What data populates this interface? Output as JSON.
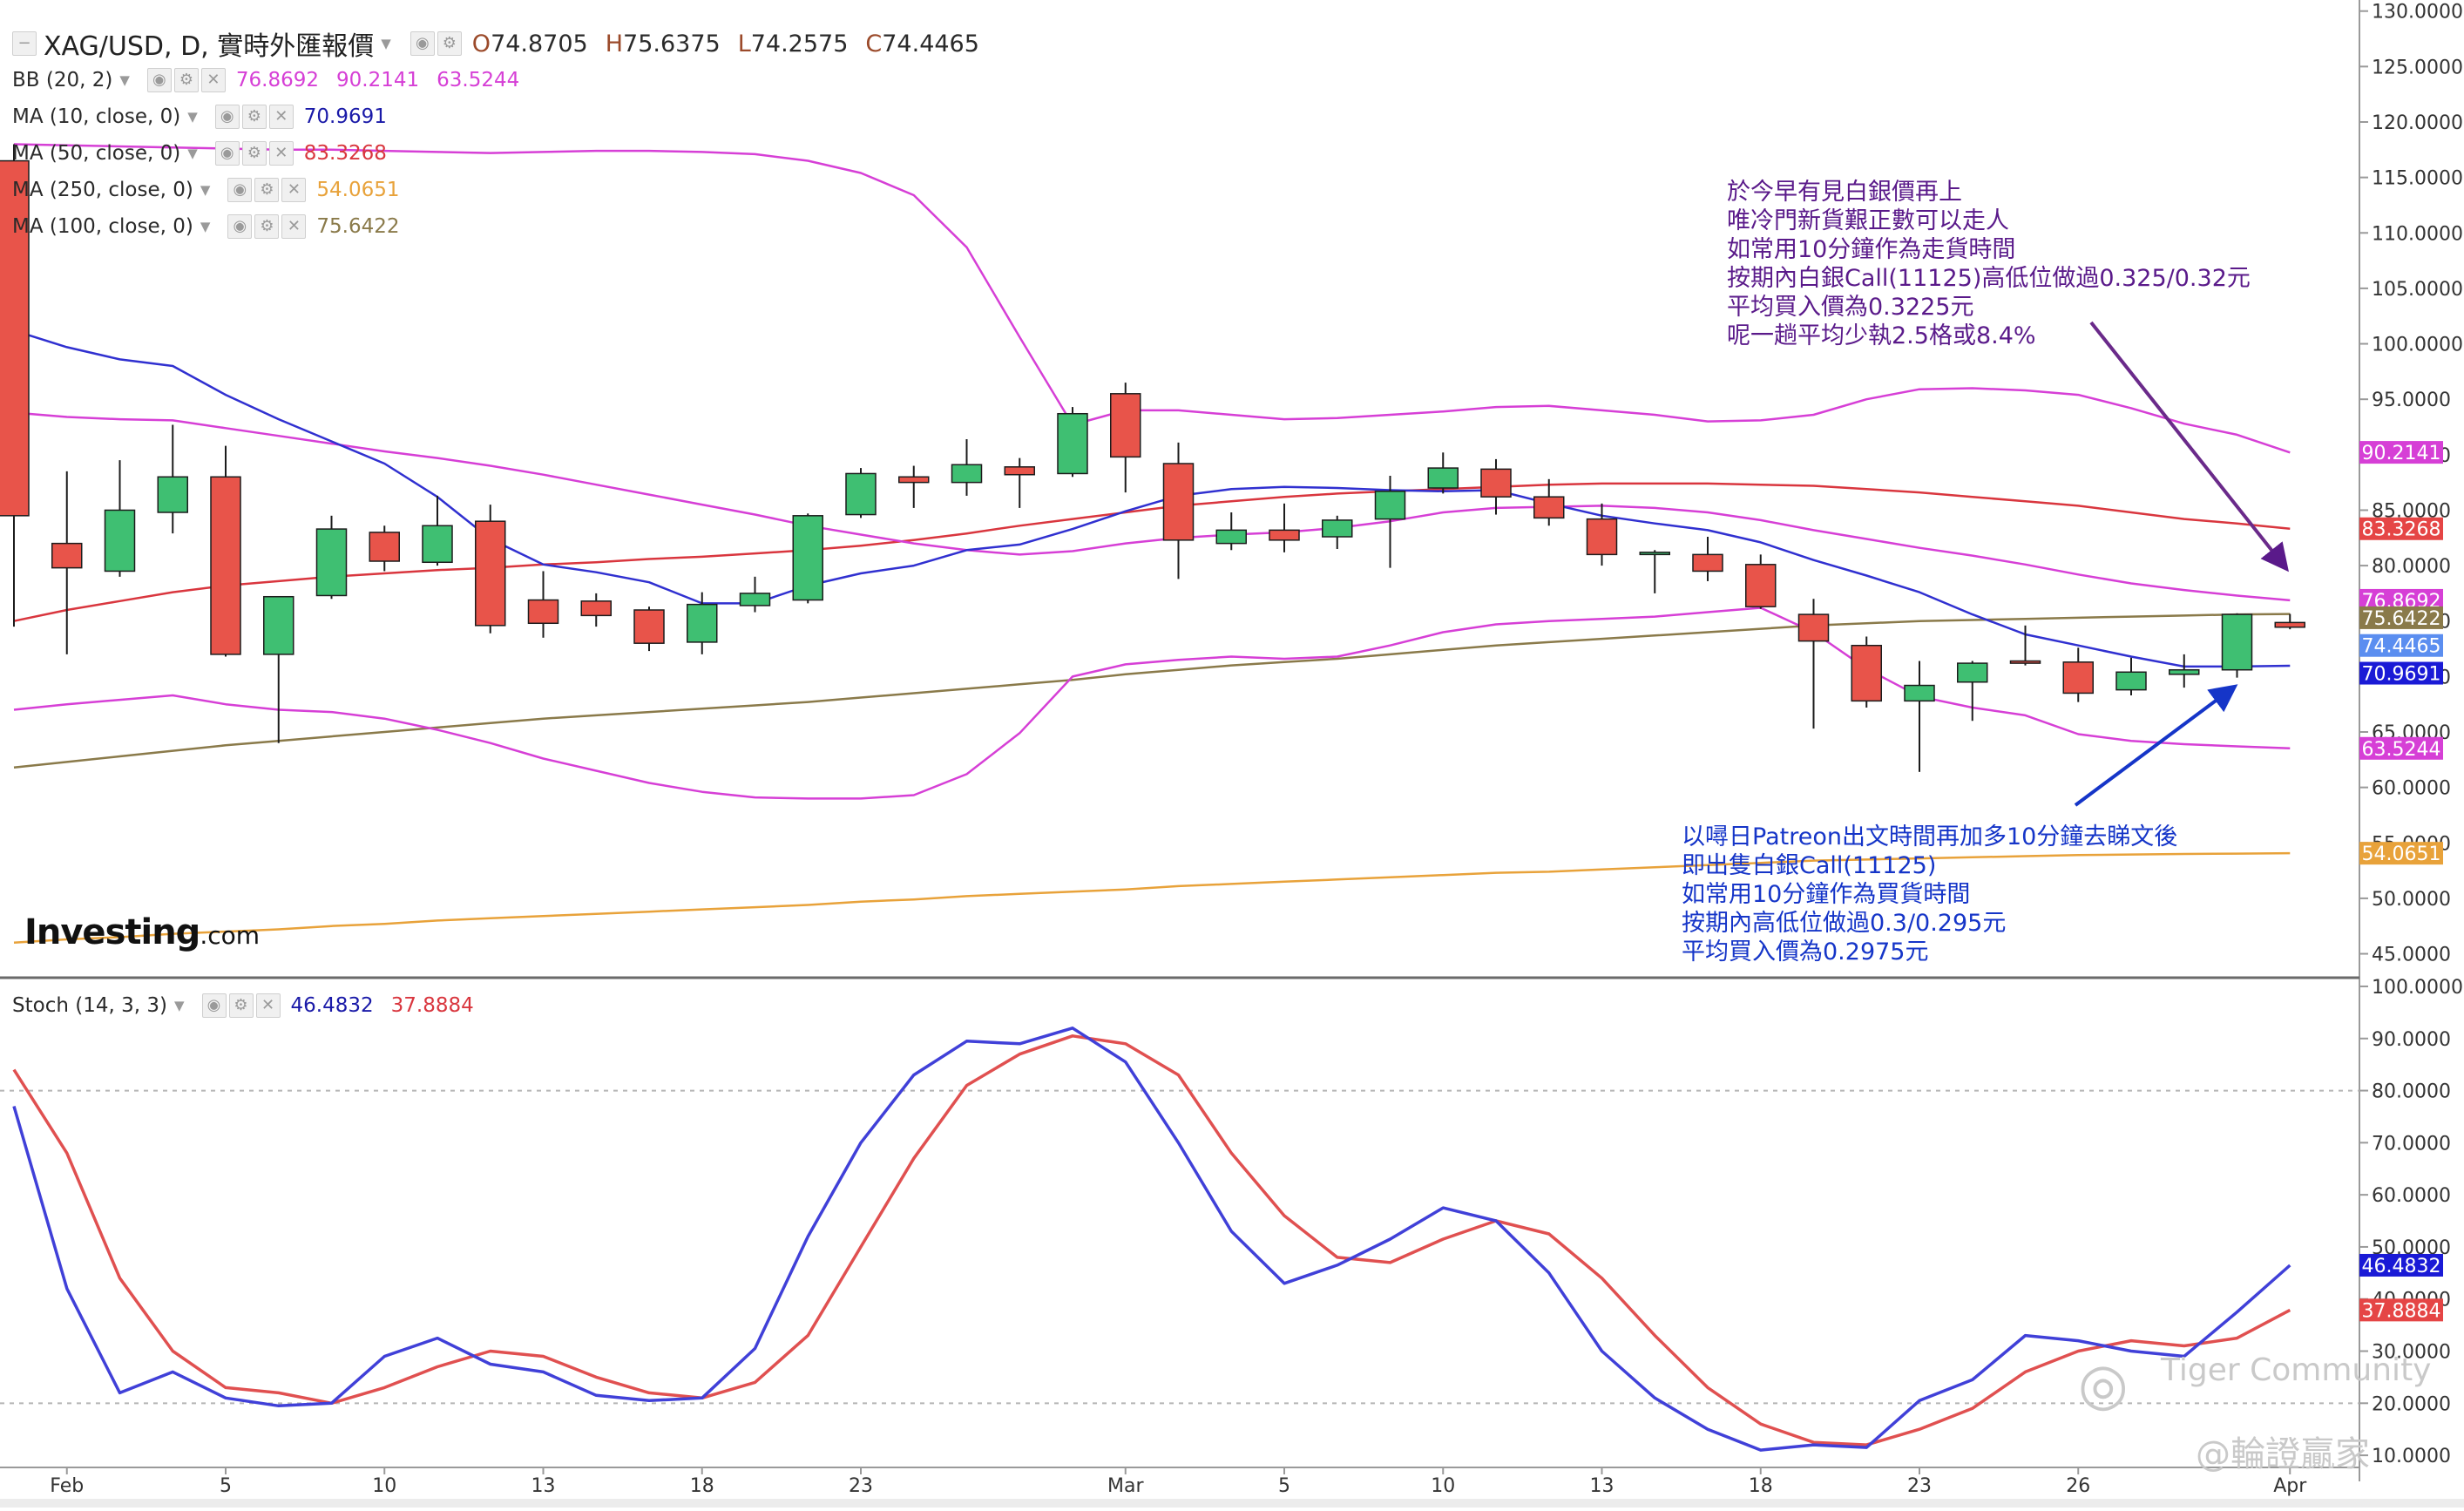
{
  "header": {
    "title": "XAG/USD, D, 實時外匯報價",
    "ohlc": [
      {
        "k": "O",
        "v": "74.8705"
      },
      {
        "k": "H",
        "v": "75.6375"
      },
      {
        "k": "L",
        "v": "74.2575"
      },
      {
        "k": "C",
        "v": "74.4465"
      }
    ]
  },
  "indicators": [
    {
      "name": "BB (20, 2)",
      "values": [
        {
          "v": "76.8692",
          "color": "#d63fd6"
        },
        {
          "v": "90.2141",
          "color": "#d63fd6"
        },
        {
          "v": "63.5244",
          "color": "#d63fd6"
        }
      ]
    },
    {
      "name": "MA (10, close, 0)",
      "values": [
        {
          "v": "70.9691",
          "color": "#1a1aa8"
        }
      ]
    },
    {
      "name": "MA (50, close, 0)",
      "values": [
        {
          "v": "83.3268",
          "color": "#d9363e"
        }
      ]
    },
    {
      "name": "MA (250, close, 0)",
      "values": [
        {
          "v": "54.0651",
          "color": "#e8a23a"
        }
      ]
    },
    {
      "name": "MA (100, close, 0)",
      "values": [
        {
          "v": "75.6422",
          "color": "#8a7a4a"
        }
      ]
    }
  ],
  "stoch_legend": {
    "name": "Stoch (14, 3, 3)",
    "k": "46.4832",
    "d": "37.8884"
  },
  "annotations": {
    "top": [
      "於今早有見白銀價再上",
      "唯冷門新貨艱正數可以走人",
      "如常用10分鐘作為走貨時間",
      "按期內白銀Call(11125)高低位做過0.325/0.32元",
      "平均買入價為0.3225元",
      "呢一趟平均少執2.5格或8.4%"
    ],
    "bottom": [
      "以噚日Patreon出文時間再加多10分鐘去睇文後",
      "即出隻白銀Call(11125)",
      "如常用10分鐘作為買貨時間",
      "按期內高低位做過0.3/0.295元",
      "平均買入價為0.2975元"
    ],
    "top_color": "#5a1a8a",
    "bottom_color": "#1535c8"
  },
  "logo": {
    "main": "Investing",
    "suffix": ".com"
  },
  "watermarks": {
    "community": "Tiger Community",
    "handle": "@輪證贏家"
  },
  "chart_data": [
    {
      "type": "candlestick",
      "title": "",
      "xlabel": "",
      "ylabel": "",
      "ylim": [
        43,
        131
      ],
      "y_ticks": [
        "130.0000",
        "125.0000",
        "120.0000",
        "115.0000",
        "110.0000",
        "105.0000",
        "100.0000",
        "95.0000",
        "90.0000",
        "85.0000",
        "80.0000",
        "75.0000",
        "70.0000",
        "65.0000",
        "60.0000",
        "55.0000",
        "50.0000",
        "45.0000"
      ],
      "x_ticks": [
        {
          "label": "Feb",
          "i": 1
        },
        {
          "label": "5",
          "i": 4
        },
        {
          "label": "10",
          "i": 7
        },
        {
          "label": "13",
          "i": 10
        },
        {
          "label": "18",
          "i": 13
        },
        {
          "label": "23",
          "i": 16
        },
        {
          "label": "Mar",
          "i": 21
        },
        {
          "label": "5",
          "i": 24
        },
        {
          "label": "10",
          "i": 27
        },
        {
          "label": "13",
          "i": 30
        },
        {
          "label": "18",
          "i": 33
        },
        {
          "label": "23",
          "i": 36
        },
        {
          "label": "26",
          "i": 39
        },
        {
          "label": "Apr",
          "i": 43
        }
      ],
      "candles": [
        {
          "o": 116.5,
          "h": 118.0,
          "l": 74.5,
          "c": 84.5
        },
        {
          "o": 82.0,
          "h": 88.5,
          "l": 72.0,
          "c": 79.8
        },
        {
          "o": 79.5,
          "h": 89.5,
          "l": 79.0,
          "c": 85.0
        },
        {
          "o": 84.8,
          "h": 92.7,
          "l": 82.9,
          "c": 88.0
        },
        {
          "o": 88.0,
          "h": 90.8,
          "l": 71.8,
          "c": 72.0
        },
        {
          "o": 72.0,
          "h": 77.0,
          "l": 64.0,
          "c": 77.2
        },
        {
          "o": 77.3,
          "h": 84.5,
          "l": 77.0,
          "c": 83.3
        },
        {
          "o": 83.0,
          "h": 83.6,
          "l": 79.5,
          "c": 80.4
        },
        {
          "o": 80.3,
          "h": 86.3,
          "l": 80.0,
          "c": 83.6
        },
        {
          "o": 84.0,
          "h": 85.5,
          "l": 73.9,
          "c": 74.6
        },
        {
          "o": 76.9,
          "h": 79.5,
          "l": 73.5,
          "c": 74.8
        },
        {
          "o": 76.8,
          "h": 77.5,
          "l": 74.5,
          "c": 75.5
        },
        {
          "o": 76.0,
          "h": 76.3,
          "l": 72.3,
          "c": 73.0
        },
        {
          "o": 73.1,
          "h": 77.6,
          "l": 72.0,
          "c": 76.5
        },
        {
          "o": 76.4,
          "h": 79.0,
          "l": 75.8,
          "c": 77.5
        },
        {
          "o": 76.9,
          "h": 84.7,
          "l": 76.6,
          "c": 84.5
        },
        {
          "o": 84.6,
          "h": 88.8,
          "l": 84.3,
          "c": 88.3
        },
        {
          "o": 88.0,
          "h": 89.0,
          "l": 85.2,
          "c": 87.5
        },
        {
          "o": 87.5,
          "h": 91.4,
          "l": 86.3,
          "c": 89.1
        },
        {
          "o": 88.9,
          "h": 89.7,
          "l": 85.2,
          "c": 88.2
        },
        {
          "o": 88.3,
          "h": 94.3,
          "l": 88.0,
          "c": 93.7
        },
        {
          "o": 95.5,
          "h": 96.5,
          "l": 86.6,
          "c": 89.8
        },
        {
          "o": 89.2,
          "h": 91.1,
          "l": 78.8,
          "c": 82.3
        },
        {
          "o": 82.0,
          "h": 84.8,
          "l": 81.4,
          "c": 83.2
        },
        {
          "o": 83.2,
          "h": 85.6,
          "l": 81.2,
          "c": 82.3
        },
        {
          "o": 82.6,
          "h": 84.5,
          "l": 81.5,
          "c": 84.1
        },
        {
          "o": 84.2,
          "h": 88.1,
          "l": 79.8,
          "c": 86.7
        },
        {
          "o": 87.0,
          "h": 90.2,
          "l": 86.5,
          "c": 88.8
        },
        {
          "o": 88.7,
          "h": 89.6,
          "l": 84.6,
          "c": 86.2
        },
        {
          "o": 86.2,
          "h": 87.8,
          "l": 83.6,
          "c": 84.3
        },
        {
          "o": 84.2,
          "h": 85.6,
          "l": 80.0,
          "c": 81.0
        },
        {
          "o": 81.0,
          "h": 81.4,
          "l": 77.5,
          "c": 81.2
        },
        {
          "o": 81.0,
          "h": 82.6,
          "l": 78.6,
          "c": 79.5
        },
        {
          "o": 80.1,
          "h": 81.0,
          "l": 76.1,
          "c": 76.3
        },
        {
          "o": 75.6,
          "h": 77.0,
          "l": 65.3,
          "c": 73.2
        },
        {
          "o": 72.8,
          "h": 73.6,
          "l": 67.2,
          "c": 67.8
        },
        {
          "o": 67.8,
          "h": 71.4,
          "l": 61.4,
          "c": 69.2
        },
        {
          "o": 69.5,
          "h": 71.4,
          "l": 66.0,
          "c": 71.2
        },
        {
          "o": 71.4,
          "h": 74.6,
          "l": 71.0,
          "c": 71.2
        },
        {
          "o": 71.3,
          "h": 72.6,
          "l": 67.7,
          "c": 68.5
        },
        {
          "o": 68.8,
          "h": 71.7,
          "l": 68.3,
          "c": 70.4
        },
        {
          "o": 70.2,
          "h": 72.0,
          "l": 69.0,
          "c": 70.6
        },
        {
          "o": 70.6,
          "h": 75.7,
          "l": 69.9,
          "c": 75.6
        },
        {
          "o": 74.87,
          "h": 75.64,
          "l": 74.26,
          "c": 74.45
        }
      ],
      "series": [
        {
          "id": "bb_upper",
          "name": "",
          "color": "#d63fd6",
          "values": [
            118,
            117.9,
            117.8,
            117.7,
            117.6,
            117.5,
            117.5,
            117.4,
            117.3,
            117.2,
            117.3,
            117.4,
            117.4,
            117.3,
            117.1,
            116.5,
            115.4,
            113.4,
            108.7,
            100.6,
            92.7,
            94.0,
            94.0,
            93.6,
            93.2,
            93.3,
            93.6,
            93.9,
            94.3,
            94.4,
            94.0,
            93.6,
            93.0,
            93.1,
            93.6,
            95.0,
            95.9,
            96.0,
            95.8,
            95.4,
            94.2,
            92.8,
            91.8,
            90.2
          ]
        },
        {
          "id": "bb_mid",
          "name": "",
          "color": "#d63fd6",
          "values": [
            93.8,
            93.4,
            93.2,
            93.1,
            92.4,
            91.7,
            91.0,
            90.3,
            89.7,
            89.0,
            88.2,
            87.3,
            86.4,
            85.5,
            84.6,
            83.6,
            82.8,
            82.0,
            81.4,
            81.0,
            81.3,
            82.0,
            82.5,
            82.8,
            83.0,
            83.4,
            84.0,
            84.8,
            85.2,
            85.3,
            85.4,
            85.2,
            84.8,
            84.1,
            83.2,
            82.4,
            81.6,
            80.9,
            80.1,
            79.2,
            78.4,
            77.8,
            77.3,
            76.87
          ]
        },
        {
          "id": "bb_lower",
          "name": "",
          "color": "#d63fd6",
          "values": [
            67.0,
            67.5,
            67.9,
            68.3,
            67.5,
            67.0,
            66.8,
            66.2,
            65.2,
            64.0,
            62.6,
            61.5,
            60.4,
            59.6,
            59.1,
            59.0,
            59.0,
            59.3,
            61.2,
            64.9,
            70.0,
            71.1,
            71.5,
            71.8,
            71.6,
            71.8,
            72.8,
            74.0,
            74.7,
            75.0,
            75.2,
            75.4,
            75.8,
            76.2,
            74.0,
            70.7,
            68.2,
            67.2,
            66.5,
            64.8,
            64.2,
            63.9,
            63.7,
            63.52
          ]
        },
        {
          "id": "ma10",
          "name": "",
          "color": "#3030d0",
          "values": [
            101.2,
            99.7,
            98.6,
            98.0,
            95.4,
            93.2,
            91.2,
            89.2,
            86.2,
            82.4,
            80.1,
            79.4,
            78.5,
            76.6,
            76.6,
            78.2,
            79.3,
            80.0,
            81.4,
            81.9,
            83.3,
            84.9,
            86.3,
            86.9,
            87.1,
            87.0,
            86.8,
            86.7,
            86.8,
            85.6,
            84.5,
            83.8,
            83.2,
            82.1,
            80.5,
            79.1,
            77.6,
            75.6,
            73.8,
            72.8,
            71.8,
            70.9,
            70.9,
            70.97
          ]
        },
        {
          "id": "ma50",
          "name": "",
          "color": "#d9363e",
          "values": [
            75.0,
            76.0,
            76.8,
            77.6,
            78.2,
            78.6,
            79.0,
            79.3,
            79.6,
            79.8,
            80.1,
            80.3,
            80.6,
            80.8,
            81.1,
            81.4,
            81.8,
            82.3,
            82.9,
            83.6,
            84.2,
            84.8,
            85.4,
            85.8,
            86.2,
            86.5,
            86.7,
            86.9,
            87.1,
            87.3,
            87.4,
            87.4,
            87.4,
            87.3,
            87.2,
            86.9,
            86.6,
            86.2,
            85.8,
            85.4,
            84.8,
            84.2,
            83.8,
            83.33
          ]
        },
        {
          "id": "ma250",
          "name": "",
          "color": "#e8a23a",
          "values": [
            46.0,
            46.3,
            46.5,
            46.8,
            47.0,
            47.2,
            47.5,
            47.7,
            48.0,
            48.2,
            48.4,
            48.6,
            48.8,
            49.0,
            49.2,
            49.4,
            49.7,
            49.9,
            50.2,
            50.4,
            50.6,
            50.8,
            51.1,
            51.3,
            51.5,
            51.7,
            51.9,
            52.1,
            52.3,
            52.4,
            52.6,
            52.8,
            53.0,
            53.2,
            53.4,
            53.5,
            53.6,
            53.7,
            53.8,
            53.9,
            53.95,
            54.0,
            54.03,
            54.07
          ]
        },
        {
          "id": "ma100",
          "name": "",
          "color": "#8a7a4a",
          "values": [
            61.8,
            62.3,
            62.8,
            63.3,
            63.8,
            64.2,
            64.6,
            65.0,
            65.4,
            65.8,
            66.2,
            66.5,
            66.8,
            67.1,
            67.4,
            67.7,
            68.1,
            68.5,
            68.9,
            69.3,
            69.7,
            70.2,
            70.6,
            71.0,
            71.3,
            71.6,
            72.0,
            72.4,
            72.8,
            73.1,
            73.4,
            73.7,
            74.0,
            74.3,
            74.6,
            74.8,
            75.0,
            75.1,
            75.2,
            75.3,
            75.4,
            75.5,
            75.6,
            75.64
          ]
        }
      ],
      "price_labels": [
        {
          "v": "90.2141",
          "y": 90.2141,
          "bg": "#d63fd6"
        },
        {
          "v": "83.3268",
          "y": 83.3268,
          "bg": "#e54545"
        },
        {
          "v": "76.8692",
          "y": 76.8692,
          "bg": "#d63fd6"
        },
        {
          "v": "75.6422",
          "y": 75.3,
          "bg": "#8a7a4a"
        },
        {
          "v": "74.4465",
          "y": 72.8,
          "bg": "#5b8ef0"
        },
        {
          "v": "70.9691",
          "y": 70.3,
          "bg": "#1a1ad6"
        },
        {
          "v": "63.5244",
          "y": 63.5244,
          "bg": "#d63fd6"
        },
        {
          "v": "54.0651",
          "y": 54.0651,
          "bg": "#e8a23a"
        }
      ]
    },
    {
      "type": "line",
      "title": "",
      "xlabel": "",
      "ylabel": "",
      "ylim": [
        5,
        101
      ],
      "y_ticks": [
        "100.0000",
        "90.0000",
        "80.0000",
        "70.0000",
        "60.0000",
        "50.0000",
        "40.0000",
        "30.0000",
        "20.0000",
        "10.0000"
      ],
      "overbought": 80,
      "oversold": 20,
      "series": [
        {
          "id": "k",
          "name": "",
          "color": "#4040d8",
          "values": [
            77,
            42,
            22,
            26,
            21,
            19.5,
            20,
            29,
            32.5,
            27.5,
            26,
            21.5,
            20.5,
            21,
            30.5,
            52,
            70,
            83,
            89.5,
            89,
            92,
            85.5,
            70,
            53,
            43,
            46.5,
            51.5,
            57.5,
            55,
            45,
            30,
            21,
            15,
            11,
            12,
            11.5,
            20.5,
            24.5,
            33,
            32,
            30,
            29,
            37.5,
            46.4832
          ]
        },
        {
          "id": "d",
          "name": "",
          "color": "#e05050",
          "values": [
            84,
            68,
            44,
            30,
            23,
            22,
            20,
            23,
            27,
            30,
            29,
            25,
            22,
            21,
            24,
            33,
            50,
            67,
            81,
            87,
            90.5,
            89,
            83,
            68,
            56,
            48,
            47,
            51.5,
            55,
            52.5,
            44,
            33,
            23,
            16,
            12.5,
            12,
            15,
            19,
            26,
            30,
            32,
            31,
            32.5,
            37.8884
          ]
        }
      ],
      "price_labels": [
        {
          "v": "46.4832",
          "y": 46.4832,
          "bg": "#1a1ad6"
        },
        {
          "v": "37.8884",
          "y": 37.8884,
          "bg": "#e54545"
        }
      ]
    }
  ]
}
